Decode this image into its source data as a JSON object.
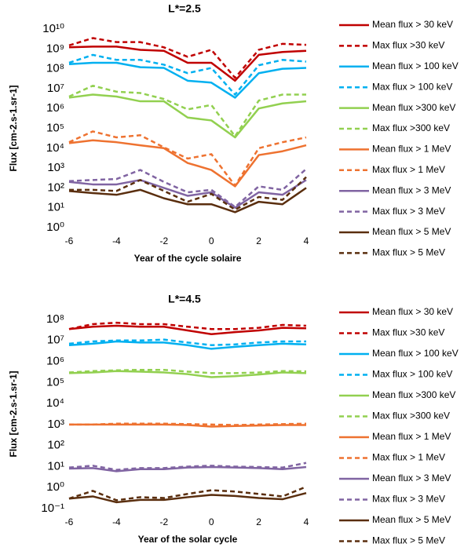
{
  "chart_data": [
    {
      "type": "line",
      "title": "L*=2.5",
      "x_label": "Year of the cycle solaire",
      "y_label": "Flux [cm-2.s-1.sr-1]",
      "log_y": true,
      "grid": false,
      "legend": "right",
      "x": [
        -6,
        -5,
        -4,
        -3,
        -2,
        -1,
        0,
        1,
        2,
        3,
        4
      ],
      "xlim": [
        -6,
        4
      ],
      "xticks": [
        -6,
        -4,
        -2,
        0,
        2,
        4
      ],
      "ylim": [
        1,
        10000000000
      ],
      "yticks": [
        {
          "value": 1,
          "label": "10⁰"
        },
        {
          "value": 10,
          "label": "10¹"
        },
        {
          "value": 100,
          "label": "10²"
        },
        {
          "value": 1000,
          "label": "10³"
        },
        {
          "value": 10000,
          "label": "10⁴"
        },
        {
          "value": 100000,
          "label": "10⁵"
        },
        {
          "value": 1000000,
          "label": "10⁶"
        },
        {
          "value": 10000000,
          "label": "10⁷"
        },
        {
          "value": 100000000,
          "label": "10⁸"
        },
        {
          "value": 1000000000,
          "label": "10⁹"
        },
        {
          "value": 10000000000,
          "label": "10¹⁰"
        }
      ],
      "series": [
        {
          "name": "Mean flux > 30 keV",
          "color": "#c00000",
          "dashed": false,
          "values": [
            1200000000,
            1300000000,
            1300000000,
            900000000,
            800000000,
            200000000,
            200000000,
            25000000,
            500000000,
            700000000,
            800000000
          ]
        },
        {
          "name": "Max flux >30 keV",
          "color": "#c00000",
          "dashed": true,
          "values": [
            1500000000,
            3500000000,
            2200000000,
            2200000000,
            1200000000,
            400000000,
            900000000,
            35000000,
            900000000,
            1800000000,
            1600000000
          ]
        },
        {
          "name": "Mean flux > 100 keV",
          "color": "#00b0f0",
          "dashed": false,
          "values": [
            170000000,
            200000000,
            200000000,
            120000000,
            110000000,
            25000000,
            20000000,
            3500000,
            60000000,
            100000000,
            110000000
          ]
        },
        {
          "name": "Max flux > 100 keV",
          "color": "#00b0f0",
          "dashed": true,
          "values": [
            200000000,
            500000000,
            280000000,
            280000000,
            160000000,
            60000000,
            110000000,
            5000000,
            150000000,
            280000000,
            230000000
          ]
        },
        {
          "name": "Mean flux >300 keV",
          "color": "#92d050",
          "dashed": false,
          "values": [
            3500000,
            5000000,
            4000000,
            2300000,
            2300000,
            350000,
            250000,
            35000,
            1000000,
            1800000,
            2300000
          ]
        },
        {
          "name": "Max flux >300 keV",
          "color": "#92d050",
          "dashed": true,
          "values": [
            4000000,
            14000000,
            7000000,
            6000000,
            3000000,
            900000,
            1500000,
            40000,
            2500000,
            5000000,
            5000000
          ]
        },
        {
          "name": "Mean flux > 1 MeV",
          "color": "#ee7230",
          "dashed": false,
          "values": [
            18000,
            25000,
            20000,
            14000,
            10000,
            1800,
            800,
            120,
            4500,
            7000,
            14000
          ]
        },
        {
          "name": "Max flux > 1 MeV",
          "color": "#ee7230",
          "dashed": true,
          "values": [
            20000,
            70000,
            35000,
            45000,
            11000,
            3000,
            5000,
            130,
            10000,
            20000,
            35000
          ]
        },
        {
          "name": "Mean flux > 3 MeV",
          "color": "#8064a2",
          "dashed": false,
          "values": [
            200,
            150,
            150,
            250,
            100,
            40,
            60,
            10,
            60,
            45,
            250
          ]
        },
        {
          "name": "Max flux > 3 MeV",
          "color": "#8064a2",
          "dashed": true,
          "values": [
            220,
            250,
            280,
            800,
            200,
            60,
            80,
            11,
            120,
            80,
            900
          ]
        },
        {
          "name": "Mean flux > 5 MeV",
          "color": "#5a2e0e",
          "dashed": false,
          "values": [
            70,
            55,
            45,
            80,
            30,
            15,
            15,
            6,
            20,
            15,
            100
          ]
        },
        {
          "name": "Max flux > 5 MeV",
          "color": "#5a2e0e",
          "dashed": true,
          "values": [
            80,
            80,
            70,
            250,
            70,
            20,
            50,
            8,
            35,
            25,
            350
          ]
        }
      ]
    },
    {
      "type": "line",
      "title": "L*=4.5",
      "x_label": "Year of the solar cycle",
      "y_label": "Flux [cm-2.s-1.sr-1]",
      "log_y": true,
      "grid": false,
      "legend": "right",
      "x": [
        -6,
        -5,
        -4,
        -3,
        -2,
        -1,
        0,
        1,
        2,
        3,
        4
      ],
      "xlim": [
        -6,
        4
      ],
      "xticks": [
        -6,
        -4,
        -2,
        0,
        2,
        4
      ],
      "ylim": [
        0.1,
        100000000
      ],
      "yticks": [
        {
          "value": 0.1,
          "label": "10⁻¹"
        },
        {
          "value": 1,
          "label": "10⁰"
        },
        {
          "value": 10,
          "label": "10¹"
        },
        {
          "value": 100,
          "label": "10²"
        },
        {
          "value": 1000,
          "label": "10³"
        },
        {
          "value": 10000,
          "label": "10⁴"
        },
        {
          "value": 100000,
          "label": "10⁵"
        },
        {
          "value": 1000000,
          "label": "10⁶"
        },
        {
          "value": 10000000,
          "label": "10⁷"
        },
        {
          "value": 100000000,
          "label": "10⁸"
        }
      ],
      "series": [
        {
          "name": "Mean flux > 30 keV",
          "color": "#c00000",
          "dashed": false,
          "values": [
            35000000,
            45000000,
            50000000,
            45000000,
            45000000,
            30000000,
            20000000,
            25000000,
            30000000,
            40000000,
            38000000
          ]
        },
        {
          "name": "Max flux >30 keV",
          "color": "#c00000",
          "dashed": true,
          "values": [
            35000000,
            60000000,
            70000000,
            60000000,
            60000000,
            45000000,
            35000000,
            35000000,
            40000000,
            55000000,
            50000000
          ]
        },
        {
          "name": "Mean flux > 100 keV",
          "color": "#00b0f0",
          "dashed": false,
          "values": [
            6000000,
            7000000,
            9000000,
            8000000,
            8000000,
            6000000,
            4000000,
            5000000,
            6000000,
            7000000,
            6500000
          ]
        },
        {
          "name": "Max flux > 100 keV",
          "color": "#00b0f0",
          "dashed": true,
          "values": [
            7000000,
            9000000,
            10000000,
            10000000,
            11000000,
            8000000,
            6000000,
            6500000,
            8000000,
            9000000,
            9000000
          ]
        },
        {
          "name": "Mean flux >300 keV",
          "color": "#92d050",
          "dashed": false,
          "values": [
            280000,
            300000,
            350000,
            330000,
            300000,
            250000,
            180000,
            200000,
            240000,
            300000,
            280000
          ]
        },
        {
          "name": "Max flux >300 keV",
          "color": "#92d050",
          "dashed": true,
          "values": [
            300000,
            350000,
            380000,
            400000,
            400000,
            330000,
            280000,
            280000,
            300000,
            350000,
            340000
          ]
        },
        {
          "name": "Mean flux > 1 MeV",
          "color": "#ee7230",
          "dashed": false,
          "values": [
            1000,
            1000,
            1000,
            1000,
            1000,
            950,
            800,
            850,
            900,
            950,
            950
          ]
        },
        {
          "name": "Max flux > 1 MeV",
          "color": "#ee7230",
          "dashed": true,
          "values": [
            1000,
            1000,
            1100,
            1100,
            1100,
            1050,
            1000,
            950,
            1000,
            1050,
            1100
          ]
        },
        {
          "name": "Mean flux > 3 MeV",
          "color": "#8064a2",
          "dashed": false,
          "values": [
            8,
            8.5,
            6,
            7.5,
            7.5,
            9,
            9.5,
            9,
            8.5,
            7.5,
            9.5
          ]
        },
        {
          "name": "Max flux > 3 MeV",
          "color": "#8064a2",
          "dashed": true,
          "values": [
            9,
            11,
            7,
            8.5,
            8.5,
            10,
            11,
            10,
            9.5,
            9,
            15
          ]
        },
        {
          "name": "Mean flux > 5 MeV",
          "color": "#5a2e0e",
          "dashed": false,
          "values": [
            0.3,
            0.38,
            0.2,
            0.26,
            0.26,
            0.35,
            0.45,
            0.4,
            0.32,
            0.28,
            0.55
          ]
        },
        {
          "name": "Max flux > 5 MeV",
          "color": "#5a2e0e",
          "dashed": true,
          "values": [
            0.3,
            0.7,
            0.25,
            0.35,
            0.32,
            0.5,
            0.75,
            0.65,
            0.5,
            0.38,
            1.1
          ]
        }
      ]
    }
  ]
}
